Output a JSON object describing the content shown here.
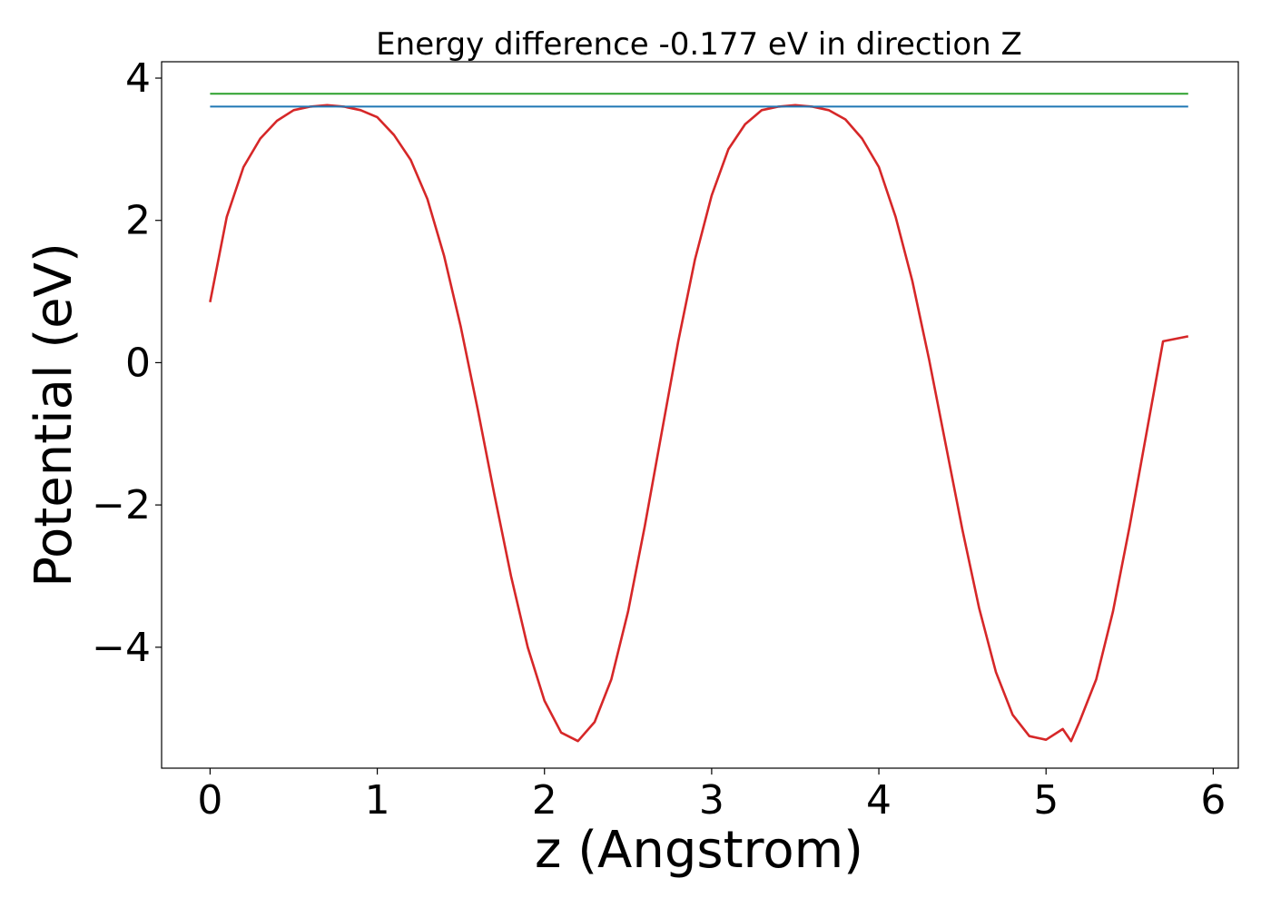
{
  "chart_data": {
    "type": "line",
    "title": "Energy difference -0.177 eV in direction Z",
    "xlabel": "z (Angstrom)",
    "ylabel": "Potential (eV)",
    "xlim": [
      -0.29,
      6.15
    ],
    "ylim": [
      -5.7,
      4.23
    ],
    "xticks": [
      0,
      1,
      2,
      3,
      4,
      5,
      6
    ],
    "xtick_labels": [
      "0",
      "1",
      "2",
      "3",
      "4",
      "5",
      "6"
    ],
    "yticks": [
      -4,
      -2,
      0,
      2,
      4
    ],
    "ytick_labels": [
      "−4",
      "−2",
      "0",
      "2",
      "4"
    ],
    "grid": false,
    "legend": "none",
    "series": [
      {
        "color": "#d62728",
        "x": [
          0.0,
          0.1,
          0.2,
          0.3,
          0.4,
          0.5,
          0.6,
          0.7,
          0.8,
          0.9,
          1.0,
          1.1,
          1.2,
          1.3,
          1.4,
          1.5,
          1.6,
          1.7,
          1.8,
          1.9,
          2.0,
          2.1,
          2.2,
          2.3,
          2.4,
          2.5,
          2.6,
          2.7,
          2.8,
          2.9,
          3.0,
          3.1,
          3.2,
          3.3,
          3.4,
          3.5,
          3.6,
          3.7,
          3.8,
          3.9,
          4.0,
          4.1,
          4.2,
          4.3,
          4.4,
          4.5,
          4.6,
          4.7,
          4.8,
          4.9,
          5.0,
          5.1,
          5.15,
          5.2,
          5.3,
          5.4,
          5.5,
          5.6,
          5.7,
          5.85
        ],
        "y": [
          0.85,
          2.05,
          2.75,
          3.15,
          3.4,
          3.55,
          3.6,
          3.62,
          3.6,
          3.55,
          3.45,
          3.2,
          2.85,
          2.3,
          1.5,
          0.5,
          -0.65,
          -1.85,
          -3.0,
          -4.0,
          -4.75,
          -5.2,
          -5.32,
          -5.05,
          -4.45,
          -3.5,
          -2.3,
          -1.0,
          0.3,
          1.45,
          2.35,
          3.0,
          3.35,
          3.55,
          3.6,
          3.62,
          3.6,
          3.55,
          3.42,
          3.15,
          2.75,
          2.05,
          1.15,
          0.05,
          -1.15,
          -2.35,
          -3.45,
          -4.35,
          -4.95,
          -5.25,
          -5.3,
          -5.15,
          -5.32,
          -5.05,
          -4.45,
          -3.5,
          -2.3,
          -1.0,
          0.3,
          0.37
        ]
      },
      {
        "color": "#2ca02c",
        "x": [
          0.0,
          5.85
        ],
        "y": [
          3.78,
          3.78
        ]
      },
      {
        "color": "#1f77b4",
        "x": [
          0.0,
          5.85
        ],
        "y": [
          3.6,
          3.6
        ]
      }
    ]
  }
}
